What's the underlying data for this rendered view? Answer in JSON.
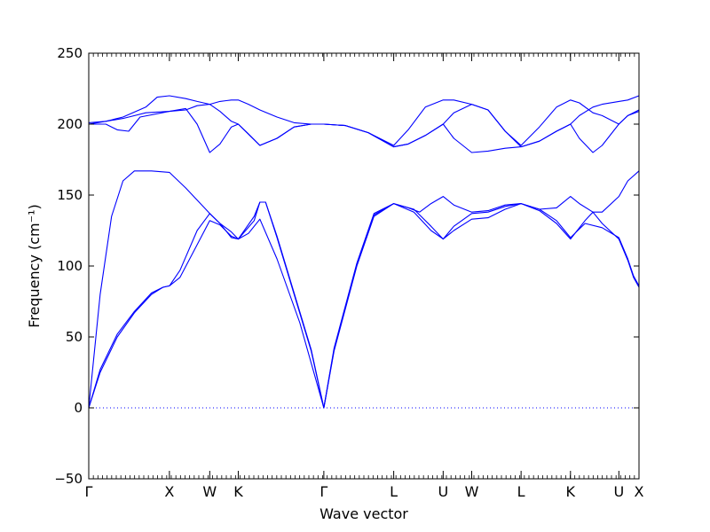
{
  "chart_data": {
    "type": "line",
    "title": "",
    "xlabel": "Wave vector",
    "ylabel": "Frequency (cm⁻¹)",
    "ylim": [
      -50,
      250
    ],
    "yticks": [
      -50,
      0,
      50,
      100,
      150,
      200,
      250
    ],
    "grid": false,
    "zero_line": true,
    "line_color": "#0000ff",
    "zero_line_color": "#0000ff",
    "high_symmetry_points": [
      {
        "label": "Γ",
        "x": 0.0
      },
      {
        "label": "X",
        "x": 0.1414
      },
      {
        "label": "W",
        "x": 0.2121
      },
      {
        "label": "K",
        "x": 0.2621
      },
      {
        "label": "Γ",
        "x": 0.4121
      },
      {
        "label": "L",
        "x": 0.5346
      },
      {
        "label": "U",
        "x": 0.6213
      },
      {
        "label": "W",
        "x": 0.6713
      },
      {
        "label": "L",
        "x": 0.7579
      },
      {
        "label": "K",
        "x": 0.8445
      },
      {
        "label": "U",
        "x": 0.9293
      },
      {
        "label": "X",
        "x": 0.9646
      }
    ],
    "series": [
      {
        "values": [
          [
            0.0,
            0
          ],
          [
            0.02,
            25
          ],
          [
            0.05,
            50
          ],
          [
            0.08,
            67
          ],
          [
            0.11,
            80
          ],
          [
            0.13,
            85
          ],
          [
            0.1414,
            86
          ],
          [
            0.16,
            92
          ],
          [
            0.19,
            115
          ],
          [
            0.2121,
            132
          ],
          [
            0.23,
            129
          ],
          [
            0.25,
            121
          ],
          [
            0.2621,
            119
          ],
          [
            0.29,
            132
          ],
          [
            0.3,
            145
          ],
          [
            0.31,
            145
          ],
          [
            0.33,
            120
          ],
          [
            0.36,
            80
          ],
          [
            0.39,
            40
          ],
          [
            0.4121,
            0
          ],
          [
            0.43,
            40
          ],
          [
            0.47,
            100
          ],
          [
            0.5,
            135
          ],
          [
            0.5346,
            144
          ],
          [
            0.57,
            140
          ],
          [
            0.6,
            128
          ],
          [
            0.6213,
            119
          ],
          [
            0.64,
            125
          ],
          [
            0.6713,
            133
          ],
          [
            0.7,
            134
          ],
          [
            0.73,
            140
          ],
          [
            0.7579,
            144
          ],
          [
            0.79,
            140
          ],
          [
            0.82,
            132
          ],
          [
            0.8445,
            120
          ],
          [
            0.87,
            130
          ],
          [
            0.9,
            127
          ],
          [
            0.9293,
            120
          ],
          [
            0.945,
            105
          ],
          [
            0.955,
            93
          ],
          [
            0.9646,
            86
          ]
        ]
      },
      {
        "values": [
          [
            0.0,
            0
          ],
          [
            0.02,
            27
          ],
          [
            0.05,
            52
          ],
          [
            0.08,
            68
          ],
          [
            0.11,
            81
          ],
          [
            0.13,
            85
          ],
          [
            0.1414,
            86
          ],
          [
            0.16,
            97
          ],
          [
            0.19,
            125
          ],
          [
            0.2121,
            137
          ],
          [
            0.23,
            130
          ],
          [
            0.25,
            120
          ],
          [
            0.2621,
            119
          ],
          [
            0.29,
            135
          ],
          [
            0.3,
            145
          ],
          [
            0.31,
            145
          ],
          [
            0.33,
            121
          ],
          [
            0.36,
            81
          ],
          [
            0.39,
            41
          ],
          [
            0.4121,
            0
          ],
          [
            0.43,
            41
          ],
          [
            0.47,
            101
          ],
          [
            0.5,
            136
          ],
          [
            0.5346,
            144
          ],
          [
            0.57,
            138
          ],
          [
            0.6,
            125
          ],
          [
            0.6213,
            119
          ],
          [
            0.64,
            128
          ],
          [
            0.6713,
            137
          ],
          [
            0.7,
            138
          ],
          [
            0.73,
            142
          ],
          [
            0.7579,
            144
          ],
          [
            0.79,
            139
          ],
          [
            0.82,
            130
          ],
          [
            0.8445,
            119
          ],
          [
            0.87,
            132
          ],
          [
            0.8838,
            138
          ],
          [
            0.9,
            130
          ],
          [
            0.9293,
            119
          ],
          [
            0.945,
            104
          ],
          [
            0.955,
            92
          ],
          [
            0.9646,
            85
          ]
        ]
      },
      {
        "values": [
          [
            0.0,
            0
          ],
          [
            0.02,
            80
          ],
          [
            0.04,
            135
          ],
          [
            0.06,
            160
          ],
          [
            0.08,
            167
          ],
          [
            0.11,
            167
          ],
          [
            0.1414,
            166
          ],
          [
            0.17,
            155
          ],
          [
            0.2121,
            137
          ],
          [
            0.23,
            130
          ],
          [
            0.25,
            124
          ],
          [
            0.2621,
            119
          ],
          [
            0.28,
            123
          ],
          [
            0.3,
            133
          ],
          [
            0.33,
            105
          ],
          [
            0.37,
            60
          ],
          [
            0.4121,
            0
          ],
          [
            0.43,
            42
          ],
          [
            0.47,
            102
          ],
          [
            0.5,
            137
          ],
          [
            0.5346,
            144
          ],
          [
            0.56,
            141
          ],
          [
            0.58,
            138
          ],
          [
            0.6,
            144
          ],
          [
            0.6213,
            149
          ],
          [
            0.64,
            143
          ],
          [
            0.6713,
            138
          ],
          [
            0.7,
            139
          ],
          [
            0.73,
            143
          ],
          [
            0.7579,
            144
          ],
          [
            0.79,
            140
          ],
          [
            0.82,
            141
          ],
          [
            0.8445,
            149
          ],
          [
            0.86,
            144
          ],
          [
            0.8838,
            138
          ],
          [
            0.9,
            138
          ],
          [
            0.9293,
            149
          ],
          [
            0.945,
            160
          ],
          [
            0.9646,
            167
          ]
        ]
      },
      {
        "values": [
          [
            0.0,
            200
          ],
          [
            0.03,
            200
          ],
          [
            0.05,
            196
          ],
          [
            0.07,
            195
          ],
          [
            0.09,
            205
          ],
          [
            0.1414,
            209
          ],
          [
            0.17,
            211
          ],
          [
            0.19,
            200
          ],
          [
            0.2121,
            180
          ],
          [
            0.23,
            186
          ],
          [
            0.25,
            198
          ],
          [
            0.2621,
            200
          ],
          [
            0.28,
            193
          ],
          [
            0.3,
            185
          ],
          [
            0.33,
            190
          ],
          [
            0.36,
            198
          ],
          [
            0.39,
            200
          ],
          [
            0.4121,
            200
          ],
          [
            0.45,
            199
          ],
          [
            0.49,
            194
          ],
          [
            0.5346,
            184
          ],
          [
            0.56,
            186
          ],
          [
            0.59,
            192
          ],
          [
            0.6213,
            200
          ],
          [
            0.64,
            190
          ],
          [
            0.6713,
            180
          ],
          [
            0.7,
            181
          ],
          [
            0.73,
            183
          ],
          [
            0.7579,
            184
          ],
          [
            0.79,
            188
          ],
          [
            0.82,
            195
          ],
          [
            0.8445,
            200
          ],
          [
            0.86,
            190
          ],
          [
            0.8838,
            180
          ],
          [
            0.9,
            185
          ],
          [
            0.9293,
            200
          ],
          [
            0.945,
            206
          ],
          [
            0.9646,
            209
          ]
        ]
      },
      {
        "values": [
          [
            0.0,
            200
          ],
          [
            0.03,
            202
          ],
          [
            0.06,
            204
          ],
          [
            0.1,
            208
          ],
          [
            0.1414,
            209
          ],
          [
            0.17,
            210
          ],
          [
            0.19,
            213
          ],
          [
            0.2121,
            214
          ],
          [
            0.23,
            209
          ],
          [
            0.25,
            202
          ],
          [
            0.2621,
            200
          ],
          [
            0.28,
            193
          ],
          [
            0.3,
            185
          ],
          [
            0.33,
            190
          ],
          [
            0.36,
            198
          ],
          [
            0.39,
            200
          ],
          [
            0.4121,
            200
          ],
          [
            0.45,
            199
          ],
          [
            0.49,
            194
          ],
          [
            0.5346,
            184
          ],
          [
            0.56,
            186
          ],
          [
            0.59,
            192
          ],
          [
            0.6213,
            200
          ],
          [
            0.64,
            208
          ],
          [
            0.6713,
            214
          ],
          [
            0.7,
            210
          ],
          [
            0.73,
            195
          ],
          [
            0.7579,
            184
          ],
          [
            0.79,
            188
          ],
          [
            0.82,
            195
          ],
          [
            0.8445,
            200
          ],
          [
            0.86,
            206
          ],
          [
            0.8838,
            212
          ],
          [
            0.9,
            214
          ],
          [
            0.9293,
            216
          ],
          [
            0.945,
            217
          ],
          [
            0.9646,
            220
          ]
        ]
      },
      {
        "values": [
          [
            0.0,
            201
          ],
          [
            0.03,
            202
          ],
          [
            0.06,
            205
          ],
          [
            0.1,
            212
          ],
          [
            0.12,
            219
          ],
          [
            0.1414,
            220
          ],
          [
            0.17,
            218
          ],
          [
            0.19,
            216
          ],
          [
            0.2121,
            214
          ],
          [
            0.23,
            216
          ],
          [
            0.25,
            217
          ],
          [
            0.2621,
            217
          ],
          [
            0.28,
            214
          ],
          [
            0.3,
            210
          ],
          [
            0.33,
            205
          ],
          [
            0.36,
            201
          ],
          [
            0.39,
            200
          ],
          [
            0.4121,
            200
          ],
          [
            0.45,
            199
          ],
          [
            0.49,
            194
          ],
          [
            0.5346,
            185
          ],
          [
            0.56,
            196
          ],
          [
            0.59,
            212
          ],
          [
            0.6213,
            217
          ],
          [
            0.64,
            217
          ],
          [
            0.6713,
            214
          ],
          [
            0.7,
            210
          ],
          [
            0.73,
            195
          ],
          [
            0.7579,
            185
          ],
          [
            0.79,
            198
          ],
          [
            0.82,
            212
          ],
          [
            0.8445,
            217
          ],
          [
            0.86,
            215
          ],
          [
            0.8838,
            208
          ],
          [
            0.9,
            206
          ],
          [
            0.9293,
            200
          ],
          [
            0.945,
            206
          ],
          [
            0.9646,
            210
          ]
        ]
      }
    ]
  }
}
